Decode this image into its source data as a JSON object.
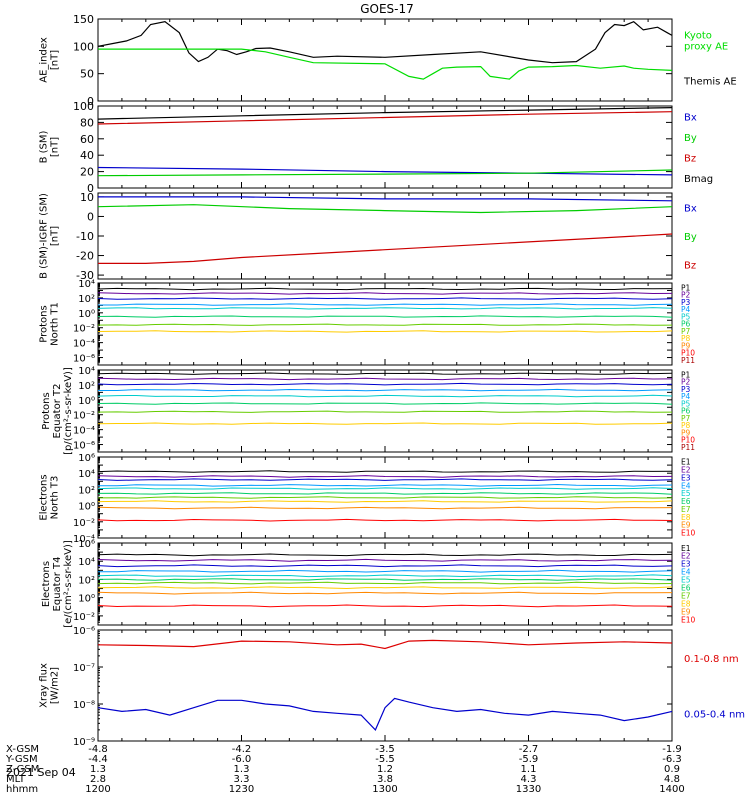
{
  "title": "GOES-17",
  "date_label": "2021 Sep 04",
  "coordinate_table": {
    "row_labels": [
      "X-GSM",
      "Y-GSM",
      "Z-GSM",
      "MLT",
      "hhmm"
    ],
    "columns": [
      [
        "-4.8",
        "-4.4",
        "1.3",
        "2.8",
        "1200"
      ],
      [
        "-4.2",
        "-6.0",
        "1.3",
        "3.3",
        "1230"
      ],
      [
        "-3.5",
        "-5.5",
        "1.2",
        "3.8",
        "1300"
      ],
      [
        "-2.7",
        "-5.9",
        "1.1",
        "4.3",
        "1330"
      ],
      [
        "-1.9",
        "-6.3",
        "0.9",
        "4.8",
        "1400"
      ]
    ]
  },
  "colors": {
    "Bx": "#0000cc",
    "By": "#00cc00",
    "Bz": "#cc0000",
    "Bmag": "#000000",
    "AE": "#000000",
    "AE_proxy": "#00dd00",
    "xray_long": "#dd0000",
    "xray_short": "#0000cc"
  },
  "channel_colors": [
    "#000000",
    "#660099",
    "#0000cc",
    "#0099ff",
    "#00cccc",
    "#00cc66",
    "#66cc00",
    "#ffcc00",
    "#ff8800",
    "#ff0000",
    "#aa0000"
  ],
  "chart_data": [
    {
      "type": "line",
      "panel": "ae",
      "ylabel": [
        "AE_index",
        "[nT]"
      ],
      "ylim": [
        0,
        150
      ],
      "yticks": [
        0,
        50,
        100,
        150
      ],
      "xlim": [
        "12:00",
        "14:00"
      ],
      "legend": [
        {
          "label": "Kyoto proxy AE",
          "lines": [
            "Kyoto",
            "proxy AE"
          ],
          "color_key": "AE_proxy"
        },
        {
          "label": "Themis AE",
          "lines": [
            "Themis AE"
          ],
          "color_key": "AE"
        }
      ],
      "series": [
        {
          "name": "Themis AE",
          "color_key": "AE",
          "x": [
            0,
            3,
            6,
            9,
            11,
            14,
            17,
            19,
            21,
            23,
            25,
            27,
            29,
            31,
            33,
            36,
            40,
            45,
            50,
            60,
            70,
            80,
            90,
            95,
            100,
            104,
            106,
            108,
            110,
            112,
            114,
            117,
            119,
            120
          ],
          "y": [
            100,
            105,
            110,
            120,
            140,
            145,
            125,
            88,
            72,
            80,
            95,
            92,
            85,
            90,
            96,
            97,
            90,
            80,
            82,
            80,
            85,
            90,
            75,
            70,
            72,
            95,
            125,
            140,
            138,
            145,
            130,
            135,
            125,
            120
          ]
        },
        {
          "name": "Kyoto proxy AE",
          "color_key": "AE_proxy",
          "x": [
            0,
            10,
            20,
            30,
            35,
            40,
            45,
            60,
            65,
            68,
            70,
            72,
            75,
            80,
            82,
            86,
            88,
            90,
            95,
            100,
            105,
            110,
            112,
            115,
            120
          ],
          "y": [
            95,
            95,
            95,
            95,
            90,
            80,
            70,
            68,
            45,
            40,
            50,
            60,
            62,
            63,
            45,
            40,
            55,
            62,
            63,
            65,
            60,
            64,
            60,
            58,
            56
          ]
        }
      ]
    },
    {
      "type": "line",
      "panel": "bsm",
      "ylabel": [
        "B (SM)",
        "[nT]"
      ],
      "ylim": [
        0,
        100
      ],
      "yticks": [
        0,
        20,
        40,
        60,
        80,
        100
      ],
      "legend": [
        {
          "label": "Bx",
          "lines": [
            "Bx"
          ],
          "color_key": "Bx"
        },
        {
          "label": "By",
          "lines": [
            "By"
          ],
          "color_key": "By"
        },
        {
          "label": "Bz",
          "lines": [
            "Bz"
          ],
          "color_key": "Bz"
        },
        {
          "label": "Bmag",
          "lines": [
            "Bmag"
          ],
          "color_key": "Bmag"
        }
      ],
      "series": [
        {
          "name": "Bmag",
          "color_key": "Bmag",
          "x": [
            0,
            30,
            60,
            90,
            120
          ],
          "y": [
            84,
            88,
            92,
            95,
            98
          ]
        },
        {
          "name": "Bz",
          "color_key": "Bz",
          "x": [
            0,
            30,
            60,
            90,
            120
          ],
          "y": [
            78,
            82,
            86,
            90,
            93
          ]
        },
        {
          "name": "Bx",
          "color_key": "Bx",
          "x": [
            0,
            30,
            60,
            90,
            120
          ],
          "y": [
            25,
            23,
            20,
            18,
            16
          ]
        },
        {
          "name": "By",
          "color_key": "By",
          "x": [
            0,
            30,
            60,
            90,
            120
          ],
          "y": [
            15,
            16,
            17,
            18,
            22
          ]
        }
      ]
    },
    {
      "type": "line",
      "panel": "bigrf",
      "ylabel": [
        "B (SM)-IGRF (SM)",
        "[nT]"
      ],
      "ylim": [
        -32,
        12
      ],
      "yticks": [
        -30,
        -20,
        -10,
        0,
        10
      ],
      "legend": [
        {
          "label": "Bx",
          "lines": [
            "Bx"
          ],
          "color_key": "Bx"
        },
        {
          "label": "By",
          "lines": [
            "By"
          ],
          "color_key": "By"
        },
        {
          "label": "Bz",
          "lines": [
            "Bz"
          ],
          "color_key": "Bz"
        }
      ],
      "series": [
        {
          "name": "Bx",
          "color_key": "Bx",
          "x": [
            0,
            30,
            60,
            90,
            120
          ],
          "y": [
            10,
            10,
            9,
            9,
            8
          ]
        },
        {
          "name": "By",
          "color_key": "By",
          "x": [
            0,
            20,
            40,
            60,
            80,
            100,
            120
          ],
          "y": [
            5,
            6,
            4,
            3,
            2,
            3,
            5
          ]
        },
        {
          "name": "Bz",
          "color_key": "Bz",
          "x": [
            0,
            10,
            20,
            30,
            45,
            60,
            75,
            90,
            105,
            120
          ],
          "y": [
            -24,
            -24,
            -23,
            -21,
            -19,
            -17,
            -15,
            -13,
            -11,
            -9
          ]
        }
      ]
    },
    {
      "type": "line",
      "panel": "protons_t1",
      "log": true,
      "ylabel": [
        "Protons",
        "North T1"
      ],
      "ylim_exp": [
        -7,
        4
      ],
      "yticks_exp": [
        -6,
        -4,
        -2,
        0,
        2,
        4
      ],
      "channel_labels": [
        "P1",
        "P2",
        "P3",
        "P4",
        "P5",
        "P6",
        "P7",
        "P8",
        "P9",
        "P10",
        "P11"
      ],
      "levels_log10": [
        3.2,
        2.6,
        1.9,
        1.1,
        0.6,
        -0.5,
        -1.6,
        -2.5
      ]
    },
    {
      "type": "line",
      "panel": "protons_t2",
      "log": true,
      "ylabel": [
        "Protons",
        "Equator T2",
        "[p/(cm²-s-sr-keV)]"
      ],
      "ylim_exp": [
        -7,
        4
      ],
      "yticks_exp": [
        -6,
        -4,
        -2,
        0,
        2,
        4
      ],
      "channel_labels": [
        "P1",
        "P2",
        "P3",
        "P4",
        "P5",
        "P6",
        "P7",
        "P8",
        "P9",
        "P10",
        "P11"
      ],
      "levels_log10": [
        3.5,
        2.8,
        2.1,
        1.3,
        0.5,
        -0.5,
        -1.6,
        -3.2
      ]
    },
    {
      "type": "line",
      "panel": "electrons_t3",
      "log": true,
      "ylabel": [
        "Electrons",
        "North T3"
      ],
      "ylim_exp": [
        -4,
        6
      ],
      "yticks_exp": [
        -4,
        -2,
        0,
        2,
        4,
        6
      ],
      "channel_labels": [
        "E1",
        "E2",
        "E3",
        "E4",
        "E5",
        "E6",
        "E7",
        "E8",
        "E9",
        "E10"
      ],
      "levels_log10": [
        4.2,
        3.6,
        3.2,
        2.5,
        2.1,
        1.5,
        1.0,
        0.5,
        -0.3,
        -1.8
      ]
    },
    {
      "type": "line",
      "panel": "electrons_t4",
      "log": true,
      "ylabel": [
        "Electrons",
        "Equator T4",
        "[e/(cm²-s-sr-keV)]"
      ],
      "ylim_exp": [
        -3,
        6
      ],
      "yticks_exp": [
        -2,
        0,
        2,
        4,
        6
      ],
      "channel_labels": [
        "E1",
        "E2",
        "E3",
        "E4",
        "E5",
        "E6",
        "E7",
        "E8",
        "E9",
        "E10"
      ],
      "levels_log10": [
        4.7,
        4.1,
        3.5,
        2.9,
        2.4,
        2.0,
        1.6,
        1.1,
        0.5,
        -0.9
      ]
    },
    {
      "type": "line",
      "panel": "xray",
      "log": true,
      "ylabel": [
        "Xray flux",
        "[W/m2]"
      ],
      "ylim_exp": [
        -9,
        -6
      ],
      "yticks_exp": [
        -9,
        -8,
        -7,
        -6
      ],
      "legend": [
        {
          "label": "0.1-0.8 nm",
          "lines": [
            "0.1-0.8 nm"
          ],
          "color_key": "xray_long"
        },
        {
          "label": "0.05-0.4 nm",
          "lines": [
            "0.05-0.4 nm"
          ],
          "color_key": "xray_short"
        }
      ],
      "series": [
        {
          "name": "0.1-0.8 nm",
          "color_key": "xray_long",
          "x": [
            0,
            10,
            20,
            30,
            40,
            50,
            55,
            60,
            65,
            70,
            80,
            90,
            100,
            110,
            120
          ],
          "y_log10": [
            -6.4,
            -6.42,
            -6.45,
            -6.3,
            -6.32,
            -6.4,
            -6.38,
            -6.5,
            -6.3,
            -6.28,
            -6.32,
            -6.4,
            -6.35,
            -6.32,
            -6.35
          ]
        },
        {
          "name": "0.05-0.4 nm",
          "color_key": "xray_short",
          "x": [
            0,
            5,
            10,
            15,
            20,
            25,
            30,
            35,
            40,
            45,
            50,
            55,
            58,
            60,
            62,
            65,
            70,
            75,
            80,
            85,
            90,
            95,
            100,
            105,
            110,
            115,
            120
          ],
          "y_log10": [
            -8.1,
            -8.2,
            -8.15,
            -8.3,
            -8.1,
            -7.9,
            -7.9,
            -8.0,
            -8.05,
            -8.2,
            -8.25,
            -8.3,
            -8.7,
            -8.1,
            -7.85,
            -7.95,
            -8.1,
            -8.2,
            -8.15,
            -8.25,
            -8.3,
            -8.2,
            -8.25,
            -8.3,
            -8.45,
            -8.35,
            -8.2
          ]
        }
      ]
    }
  ]
}
